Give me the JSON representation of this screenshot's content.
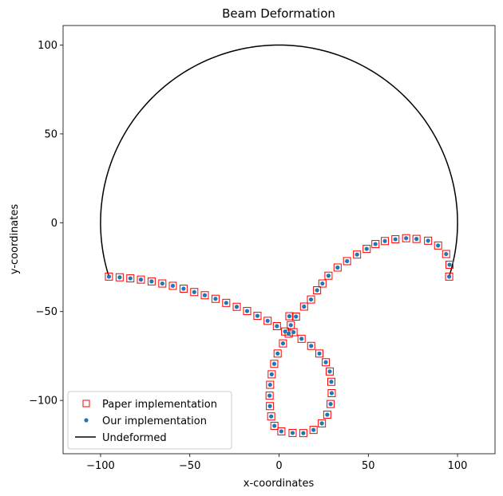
{
  "chart_data": {
    "type": "scatter",
    "title": "Beam Deformation",
    "xlabel": "x-coordinates",
    "ylabel": "y-coordinates",
    "xlim": [
      -121,
      121
    ],
    "ylim": [
      -130,
      111
    ],
    "xticks": [
      -100,
      -50,
      0,
      50,
      100
    ],
    "yticks": [
      100,
      50,
      0,
      -50,
      -100
    ],
    "grid": false,
    "legend_position": "lower-left",
    "series": [
      {
        "name": "Paper implementation",
        "kind": "scatter",
        "marker": "hollow-square",
        "color": "#ff0000",
        "x": [
          -95.3,
          -89.3,
          -83.3,
          -77.4,
          -71.4,
          -65.4,
          -59.5,
          -53.5,
          -47.5,
          -41.6,
          -35.6,
          -29.6,
          -23.7,
          -17.9,
          -12.1,
          -6.4,
          -1.2,
          3.4,
          6.6,
          5.8,
          2.2,
          -0.8,
          -2.7,
          -4.1,
          -5.0,
          -5.3,
          -5.1,
          -4.4,
          -2.6,
          1.3,
          7.6,
          13.6,
          19.3,
          24.0,
          27.0,
          28.9,
          29.5,
          29.3,
          28.4,
          26.2,
          22.6,
          18.0,
          12.6,
          8.1,
          5.4,
          9.5,
          14.0,
          17.9,
          21.3,
          24.3,
          27.7,
          32.8,
          38.1,
          43.7,
          49.1,
          54.0,
          59.3,
          65.2,
          71.2,
          77.0,
          83.5,
          89.1,
          93.6,
          95.5,
          95.3
        ],
        "y": [
          -30.3,
          -30.7,
          -31.3,
          -32.0,
          -33.0,
          -34.2,
          -35.5,
          -37.1,
          -39.0,
          -40.8,
          -42.8,
          -45.1,
          -47.3,
          -49.7,
          -52.4,
          -55.2,
          -58.2,
          -61.2,
          -57.6,
          -52.6,
          -67.9,
          -73.6,
          -79.4,
          -85.3,
          -91.2,
          -97.3,
          -103.2,
          -109.0,
          -114.3,
          -117.4,
          -118.3,
          -118.4,
          -116.6,
          -112.9,
          -108.0,
          -102.0,
          -95.9,
          -89.5,
          -83.7,
          -78.5,
          -73.6,
          -69.3,
          -65.3,
          -61.6,
          -62.4,
          -52.8,
          -47.2,
          -43.2,
          -38.0,
          -34.2,
          -29.8,
          -25.2,
          -21.6,
          -17.9,
          -14.7,
          -12.0,
          -10.3,
          -9.3,
          -8.7,
          -9.1,
          -10.1,
          -12.8,
          -17.6,
          -23.6,
          -30.3
        ]
      },
      {
        "name": "Our implementation",
        "kind": "scatter",
        "marker": "filled-circle",
        "color": "#1f77b4",
        "x": [
          -95.3,
          -89.3,
          -83.3,
          -77.4,
          -71.4,
          -65.4,
          -59.5,
          -53.5,
          -47.5,
          -41.6,
          -35.6,
          -29.6,
          -23.7,
          -17.9,
          -12.1,
          -6.4,
          -1.2,
          3.4,
          6.6,
          5.8,
          2.2,
          -0.8,
          -2.7,
          -4.1,
          -5.0,
          -5.3,
          -5.1,
          -4.4,
          -2.6,
          1.3,
          7.6,
          13.6,
          19.3,
          24.0,
          27.0,
          28.9,
          29.5,
          29.3,
          28.4,
          26.2,
          22.6,
          18.0,
          12.6,
          8.1,
          5.4,
          9.5,
          14.0,
          17.9,
          21.3,
          24.3,
          27.7,
          32.8,
          38.1,
          43.7,
          49.1,
          54.0,
          59.3,
          65.2,
          71.2,
          77.0,
          83.5,
          89.1,
          93.6,
          95.5,
          95.3
        ],
        "y": [
          -30.3,
          -30.7,
          -31.3,
          -32.0,
          -33.0,
          -34.2,
          -35.5,
          -37.1,
          -39.0,
          -40.8,
          -42.8,
          -45.1,
          -47.3,
          -49.7,
          -52.4,
          -55.2,
          -58.2,
          -61.2,
          -57.6,
          -52.6,
          -67.9,
          -73.6,
          -79.4,
          -85.3,
          -91.2,
          -97.3,
          -103.2,
          -109.0,
          -114.3,
          -117.4,
          -118.3,
          -118.4,
          -116.6,
          -112.9,
          -108.0,
          -102.0,
          -95.9,
          -89.5,
          -83.7,
          -78.5,
          -73.6,
          -69.3,
          -65.3,
          -61.6,
          -62.4,
          -52.8,
          -47.2,
          -43.2,
          -38.0,
          -34.2,
          -29.8,
          -25.2,
          -21.6,
          -17.9,
          -14.7,
          -12.0,
          -10.3,
          -9.3,
          -8.7,
          -9.1,
          -10.1,
          -12.8,
          -17.6,
          -23.6,
          -30.3
        ]
      },
      {
        "name": "Undeformed",
        "kind": "line",
        "color": "#000000",
        "shape": "arc",
        "radius": 100,
        "center": [
          0,
          0
        ],
        "theta_start_deg": 197.5,
        "theta_end_deg": -17.5
      }
    ]
  }
}
